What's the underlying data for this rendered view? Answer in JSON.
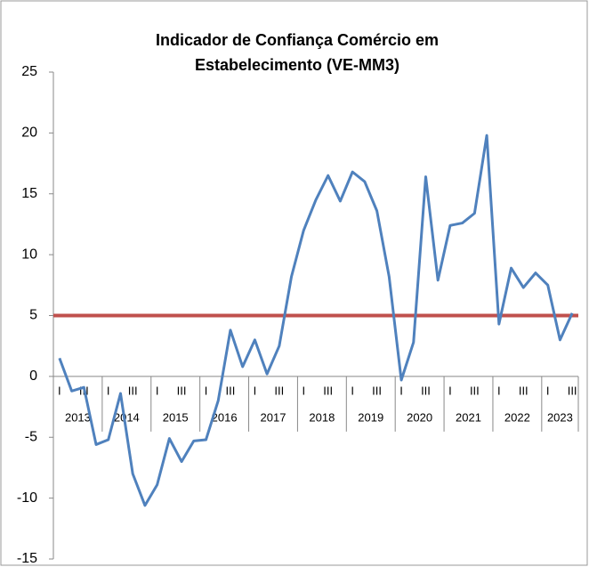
{
  "chart_data": {
    "type": "line",
    "title": [
      "Indicador de Confiança Comércio em",
      "Estabelecimento (VE-MM3)"
    ],
    "categories": [
      "I",
      null,
      "III",
      null,
      "I",
      null,
      "III",
      null,
      "I",
      null,
      "III",
      null,
      "I",
      null,
      "III",
      null,
      "I",
      null,
      "III",
      null,
      "I",
      null,
      "III",
      null,
      "I",
      null,
      "III",
      null,
      "I",
      null,
      "III",
      null,
      "I",
      null,
      "III",
      null,
      "I",
      null,
      "III",
      null,
      "I",
      null,
      "III"
    ],
    "years": [
      "2013",
      "2014",
      "2015",
      "2016",
      "2017",
      "2018",
      "2019",
      "2020",
      "2021",
      "2022",
      "2023"
    ],
    "series": [
      {
        "color": "#4f81bd",
        "values": [
          1.5,
          -1.2,
          -0.9,
          -5.6,
          -5.2,
          -1.4,
          -8.0,
          -10.6,
          -8.9,
          -5.1,
          -7.0,
          -5.3,
          -5.2,
          -2.0,
          3.8,
          0.8,
          3.0,
          0.2,
          2.5,
          8.2,
          12.0,
          14.5,
          16.5,
          14.4,
          16.8,
          16.0,
          13.6,
          8.2,
          -0.3,
          2.8,
          16.4,
          7.9,
          12.4,
          12.6,
          13.4,
          19.8,
          4.3,
          8.9,
          7.3,
          8.5,
          7.5,
          3.0,
          5.2
        ]
      }
    ],
    "reference_line": {
      "value": 5,
      "color": "#c0504d"
    },
    "ylim": [
      -15,
      25
    ],
    "yticks": [
      -15,
      -10,
      -5,
      0,
      5,
      10,
      15,
      20,
      25
    ],
    "grid": false
  }
}
